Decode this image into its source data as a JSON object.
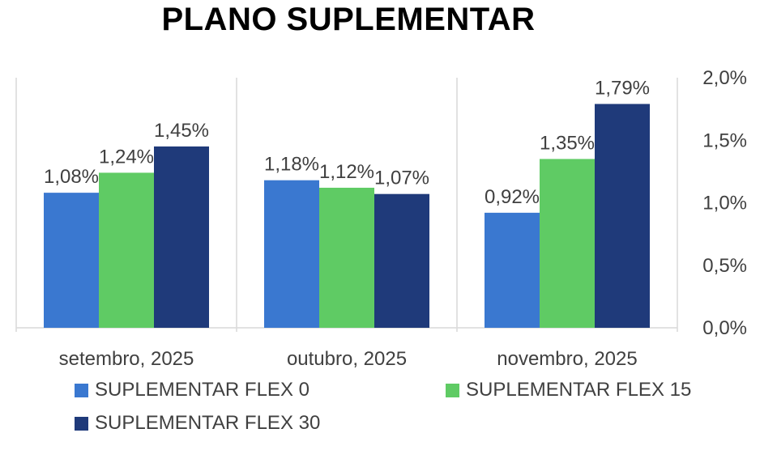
{
  "chart_data": {
    "type": "bar",
    "title": "PLANO SUPLEMENTAR",
    "categories": [
      "setembro, 2025",
      "outubro, 2025",
      "novembro, 2025"
    ],
    "series": [
      {
        "name": "SUPLEMENTAR FLEX 0",
        "color": "#3a78d0",
        "values": [
          1.08,
          1.18,
          0.92
        ],
        "labels": [
          "1,08%",
          "1,18%",
          "0,92%"
        ]
      },
      {
        "name": "SUPLEMENTAR FLEX 15",
        "color": "#5fcb64",
        "values": [
          1.24,
          1.12,
          1.35
        ],
        "labels": [
          "1,24%",
          "1,12%",
          "1,35%"
        ]
      },
      {
        "name": "SUPLEMENTAR FLEX 30",
        "color": "#1f3a7a",
        "values": [
          1.45,
          1.07,
          1.79
        ],
        "labels": [
          "1,45%",
          "1,07%",
          "1,79%"
        ]
      }
    ],
    "ylim": [
      0,
      2.0
    ],
    "yticks": [
      0,
      0.5,
      1.0,
      1.5,
      2.0
    ],
    "ytick_labels": [
      "0,0%",
      "0,5%",
      "1,0%",
      "1,5%",
      "2,0%"
    ],
    "y_axis_side": "right",
    "xlabel": "",
    "ylabel": "",
    "grid": "vertical category separators",
    "legend_position": "bottom"
  }
}
